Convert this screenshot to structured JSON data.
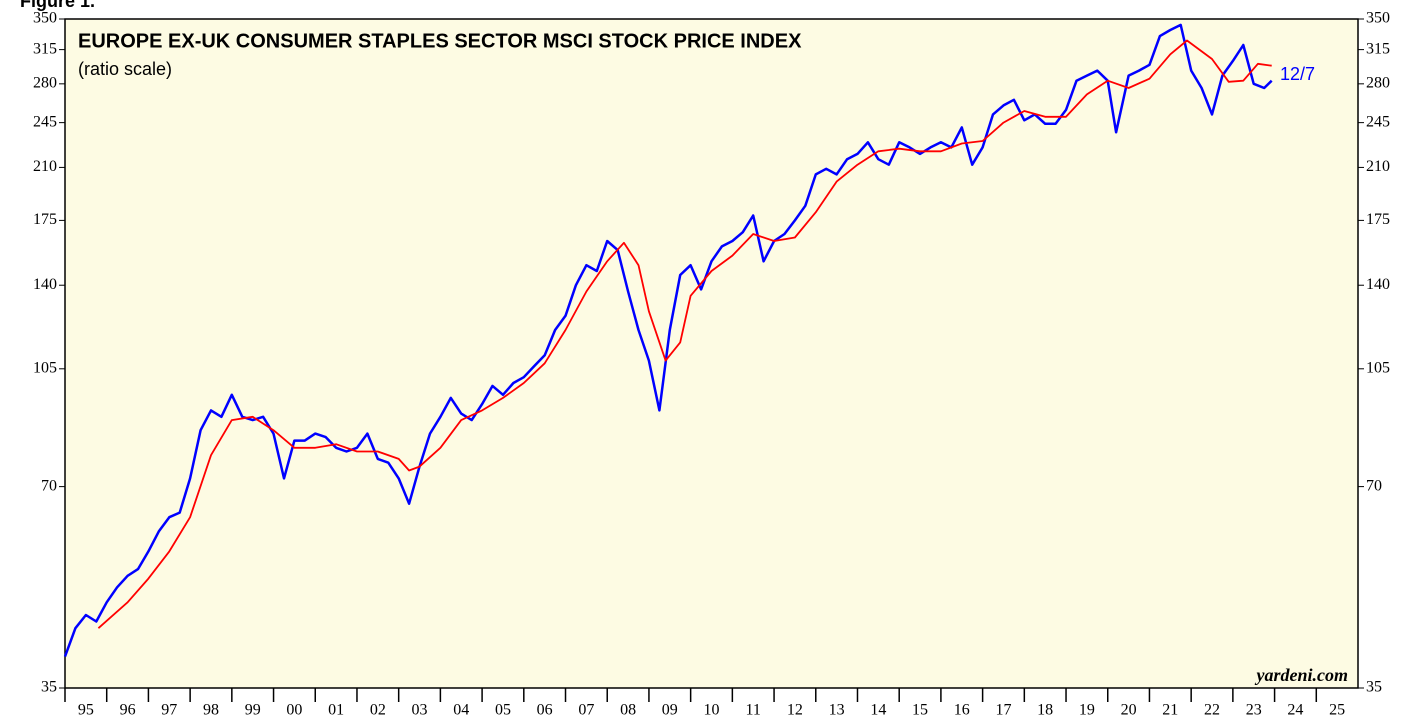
{
  "chart_data": {
    "type": "line",
    "figure_label": "Figure 1.",
    "title": "EUROPE EX-UK CONSUMER STAPLES SECTOR MSCI STOCK PRICE INDEX",
    "subtitle": "(ratio scale)",
    "source": "yardeni.com",
    "annotation": {
      "text": "12/7",
      "color": "#0000ff"
    },
    "yscale": "log",
    "ylim": [
      35,
      350
    ],
    "yticks": [
      35,
      70,
      105,
      140,
      175,
      210,
      245,
      280,
      315,
      350
    ],
    "xlim": [
      1995,
      2026
    ],
    "xticks": [
      {
        "value": 1995.5,
        "label": "95"
      },
      {
        "value": 1996.5,
        "label": "96"
      },
      {
        "value": 1997.5,
        "label": "97"
      },
      {
        "value": 1998.5,
        "label": "98"
      },
      {
        "value": 1999.5,
        "label": "99"
      },
      {
        "value": 2000.5,
        "label": "00"
      },
      {
        "value": 2001.5,
        "label": "01"
      },
      {
        "value": 2002.5,
        "label": "02"
      },
      {
        "value": 2003.5,
        "label": "03"
      },
      {
        "value": 2004.5,
        "label": "04"
      },
      {
        "value": 2005.5,
        "label": "05"
      },
      {
        "value": 2006.5,
        "label": "06"
      },
      {
        "value": 2007.5,
        "label": "07"
      },
      {
        "value": 2008.5,
        "label": "08"
      },
      {
        "value": 2009.5,
        "label": "09"
      },
      {
        "value": 2010.5,
        "label": "10"
      },
      {
        "value": 2011.5,
        "label": "11"
      },
      {
        "value": 2012.5,
        "label": "12"
      },
      {
        "value": 2013.5,
        "label": "13"
      },
      {
        "value": 2014.5,
        "label": "14"
      },
      {
        "value": 2015.5,
        "label": "15"
      },
      {
        "value": 2016.5,
        "label": "16"
      },
      {
        "value": 2017.5,
        "label": "17"
      },
      {
        "value": 2018.5,
        "label": "18"
      },
      {
        "value": 2019.5,
        "label": "19"
      },
      {
        "value": 2020.5,
        "label": "20"
      },
      {
        "value": 2021.5,
        "label": "21"
      },
      {
        "value": 2022.5,
        "label": "22"
      },
      {
        "value": 2023.5,
        "label": "23"
      },
      {
        "value": 2024.5,
        "label": "24"
      },
      {
        "value": 2025.5,
        "label": "25"
      }
    ],
    "background": "#fdfbe3",
    "series": [
      {
        "color": "#0000ff",
        "x": [
          1995.0,
          1995.25,
          1995.5,
          1995.75,
          1996.0,
          1996.25,
          1996.5,
          1996.75,
          1997.0,
          1997.25,
          1997.5,
          1997.75,
          1998.0,
          1998.25,
          1998.5,
          1998.75,
          1999.0,
          1999.25,
          1999.5,
          1999.75,
          2000.0,
          2000.25,
          2000.5,
          2000.75,
          2001.0,
          2001.25,
          2001.5,
          2001.75,
          2002.0,
          2002.25,
          2002.5,
          2002.75,
          2003.0,
          2003.25,
          2003.5,
          2003.75,
          2004.0,
          2004.25,
          2004.5,
          2004.75,
          2005.0,
          2005.25,
          2005.5,
          2005.75,
          2006.0,
          2006.25,
          2006.5,
          2006.75,
          2007.0,
          2007.25,
          2007.5,
          2007.75,
          2008.0,
          2008.25,
          2008.5,
          2008.75,
          2009.0,
          2009.25,
          2009.5,
          2009.75,
          2010.0,
          2010.25,
          2010.5,
          2010.75,
          2011.0,
          2011.25,
          2011.5,
          2011.75,
          2012.0,
          2012.25,
          2012.5,
          2012.75,
          2013.0,
          2013.25,
          2013.5,
          2013.75,
          2014.0,
          2014.25,
          2014.5,
          2014.75,
          2015.0,
          2015.25,
          2015.5,
          2015.75,
          2016.0,
          2016.25,
          2016.5,
          2016.75,
          2017.0,
          2017.25,
          2017.5,
          2017.75,
          2018.0,
          2018.25,
          2018.5,
          2018.75,
          2019.0,
          2019.25,
          2019.5,
          2019.75,
          2020.0,
          2020.2,
          2020.5,
          2020.75,
          2021.0,
          2021.25,
          2021.5,
          2021.75,
          2022.0,
          2022.25,
          2022.5,
          2022.75,
          2023.0,
          2023.25,
          2023.5,
          2023.75,
          2023.93
        ],
        "values": [
          39,
          43,
          45,
          44,
          47,
          49.5,
          51.5,
          52.7,
          56,
          60,
          63,
          64,
          72,
          85,
          91,
          89,
          96,
          89,
          88,
          89,
          84,
          72,
          82,
          82,
          84,
          83,
          80,
          79,
          80,
          84,
          77,
          76,
          72,
          66,
          75,
          84,
          89,
          95,
          90,
          88,
          93,
          99,
          96,
          100,
          102,
          106,
          110,
          120,
          126,
          140,
          150,
          147,
          163,
          158,
          137,
          120,
          108,
          91,
          120,
          145,
          150,
          138,
          152,
          160,
          163,
          168,
          178,
          152,
          163,
          167,
          175,
          184,
          205,
          209,
          205,
          216,
          220,
          229,
          216,
          212,
          229,
          225,
          220,
          225,
          229,
          225,
          241,
          212,
          225,
          252,
          260,
          265,
          247,
          252,
          244,
          244,
          256,
          283,
          288,
          293,
          283,
          237,
          288,
          293,
          299,
          330,
          337,
          343,
          293,
          276,
          252,
          288,
          303,
          320,
          280,
          276,
          283
        ]
      },
      {
        "color": "#ff0000",
        "x": [
          1995.8,
          1996.5,
          1997.0,
          1997.5,
          1998.0,
          1998.5,
          1999.0,
          1999.5,
          2000.0,
          2000.5,
          2001.0,
          2001.5,
          2002.0,
          2002.5,
          2003.0,
          2003.25,
          2003.5,
          2004.0,
          2004.5,
          2005.0,
          2005.5,
          2006.0,
          2006.5,
          2007.0,
          2007.5,
          2008.0,
          2008.4,
          2008.75,
          2009.0,
          2009.4,
          2009.75,
          2010.0,
          2010.5,
          2011.0,
          2011.5,
          2012.0,
          2012.5,
          2013.0,
          2013.5,
          2014.0,
          2014.5,
          2015.0,
          2015.5,
          2016.0,
          2016.5,
          2017.0,
          2017.5,
          2018.0,
          2018.5,
          2019.0,
          2019.5,
          2020.0,
          2020.5,
          2021.0,
          2021.5,
          2021.9,
          2022.5,
          2022.9,
          2023.25,
          2023.6,
          2023.93
        ],
        "values": [
          43,
          47,
          51,
          56,
          63,
          78,
          88,
          89,
          85,
          80,
          80,
          81,
          79,
          79,
          77,
          74,
          75,
          80,
          88,
          91,
          95,
          100,
          107,
          120,
          137,
          152,
          162,
          150,
          128,
          108,
          115,
          135,
          147,
          155,
          167,
          163,
          165,
          180,
          200,
          212,
          222,
          224,
          222,
          222,
          228,
          230,
          245,
          255,
          250,
          250,
          270,
          283,
          276,
          285,
          310,
          325,
          305,
          282,
          283,
          300,
          298
        ]
      }
    ]
  }
}
